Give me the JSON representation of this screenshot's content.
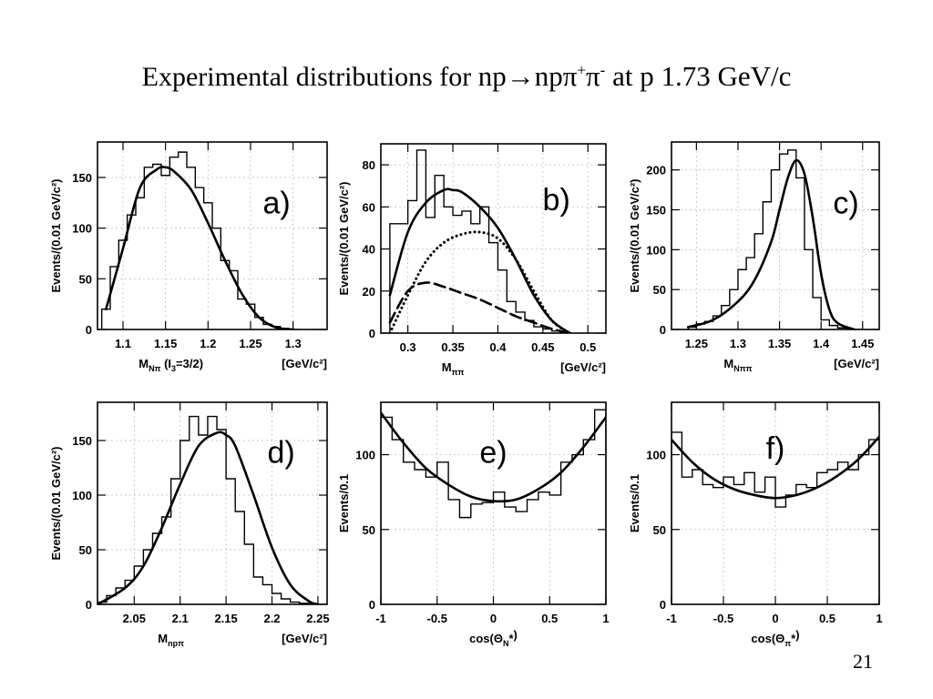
{
  "slide": {
    "title_prefix": "Experimental distributions for",
    "reaction": "np→npπ",
    "reaction_plus": "+",
    "pi_minus": "π",
    "minus_sup": "-",
    "title_suffix": "at p 1.73 GeV/c",
    "page_number": "21"
  },
  "chart_data": [
    {
      "id": "a",
      "type": "line",
      "label": "a)",
      "ylabel": "Events/(0.01 GeV/c²)",
      "xlabel_parts": [
        "M",
        "Nπ",
        " (I",
        "3",
        "=3/2)"
      ],
      "xunit": "[GeV/c²]",
      "xlim": [
        1.07,
        1.34
      ],
      "ylim": [
        0,
        185
      ],
      "xticks": [
        1.1,
        1.15,
        1.2,
        1.25,
        1.3
      ],
      "xtick_labels": [
        "1.1",
        "1.15",
        "1.2",
        "1.25",
        "1.3"
      ],
      "yticks": [
        0,
        50,
        100,
        150
      ],
      "ytick_labels": [
        "0",
        "50",
        "100",
        "150"
      ],
      "hist": {
        "start": 1.075,
        "width": 0.01,
        "counts": [
          20,
          62,
          88,
          113,
          130,
          160,
          163,
          152,
          170,
          175,
          160,
          140,
          125,
          100,
          68,
          58,
          30,
          25,
          12,
          5,
          3,
          1,
          0
        ]
      },
      "curves": [
        {
          "style": "solid",
          "x": [
            1.08,
            1.1,
            1.12,
            1.14,
            1.15,
            1.16,
            1.18,
            1.2,
            1.22,
            1.24,
            1.26,
            1.28,
            1.3
          ],
          "y": [
            20,
            80,
            140,
            158,
            160,
            156,
            138,
            105,
            68,
            35,
            12,
            2,
            0
          ]
        }
      ]
    },
    {
      "id": "b",
      "type": "line",
      "label": "b)",
      "ylabel": "Events/(0.01 GeV/c²)",
      "xlabel_parts": [
        "M",
        "ππ",
        "",
        "",
        ""
      ],
      "xunit": "[GeV/c²]",
      "xlim": [
        0.27,
        0.52
      ],
      "ylim": [
        0,
        90
      ],
      "xticks": [
        0.3,
        0.35,
        0.4,
        0.45,
        0.5
      ],
      "xtick_labels": [
        "0.3",
        "0.35",
        "0.4",
        "0.45",
        "0.5"
      ],
      "yticks": [
        0,
        20,
        40,
        60,
        80
      ],
      "ytick_labels": [
        "0",
        "20",
        "40",
        "60",
        "80"
      ],
      "hist": {
        "start": 0.28,
        "width": 0.01,
        "counts": [
          52,
          52,
          63,
          87,
          55,
          75,
          60,
          56,
          58,
          52,
          60,
          43,
          30,
          15,
          10,
          6,
          3,
          2,
          1,
          0
        ]
      },
      "curves": [
        {
          "style": "solid",
          "x": [
            0.28,
            0.3,
            0.32,
            0.34,
            0.35,
            0.36,
            0.38,
            0.4,
            0.42,
            0.44,
            0.46,
            0.48
          ],
          "y": [
            18,
            48,
            62,
            68,
            68,
            67,
            60,
            50,
            35,
            18,
            6,
            0
          ]
        },
        {
          "style": "dotted",
          "x": [
            0.28,
            0.3,
            0.32,
            0.34,
            0.36,
            0.38,
            0.4,
            0.42,
            0.44,
            0.46,
            0.48
          ],
          "y": [
            0,
            18,
            34,
            43,
            47,
            48,
            45,
            35,
            20,
            6,
            0
          ]
        },
        {
          "style": "dashed",
          "x": [
            0.28,
            0.3,
            0.32,
            0.34,
            0.36,
            0.38,
            0.4,
            0.42,
            0.44,
            0.46,
            0.48
          ],
          "y": [
            5,
            20,
            24,
            22,
            19,
            16,
            12,
            8,
            5,
            2,
            0
          ]
        }
      ]
    },
    {
      "id": "c",
      "type": "line",
      "label": "c)",
      "ylabel": "Events/(0.01 GeV/c²)",
      "xlabel_parts": [
        "M",
        "Nππ",
        "",
        "",
        ""
      ],
      "xunit": "[GeV/c²]",
      "xlim": [
        1.22,
        1.47
      ],
      "ylim": [
        0,
        235
      ],
      "xticks": [
        1.25,
        1.3,
        1.35,
        1.4,
        1.45
      ],
      "xtick_labels": [
        "1.25",
        "1.3",
        "1.35",
        "1.4",
        "1.45"
      ],
      "yticks": [
        0,
        50,
        100,
        150,
        200
      ],
      "ytick_labels": [
        "0",
        "50",
        "100",
        "150",
        "200"
      ],
      "hist": {
        "start": 1.24,
        "width": 0.01,
        "counts": [
          3,
          7,
          10,
          17,
          30,
          50,
          75,
          90,
          120,
          160,
          200,
          220,
          225,
          190,
          100,
          40,
          12,
          5,
          2,
          0,
          0
        ]
      },
      "curves": [
        {
          "style": "solid",
          "x": [
            1.24,
            1.27,
            1.3,
            1.32,
            1.34,
            1.35,
            1.36,
            1.37,
            1.38,
            1.39,
            1.4,
            1.41,
            1.42,
            1.44
          ],
          "y": [
            3,
            12,
            35,
            62,
            110,
            150,
            190,
            212,
            195,
            140,
            70,
            25,
            8,
            0
          ]
        }
      ]
    },
    {
      "id": "d",
      "type": "line",
      "label": "d)",
      "ylabel": "Events/(0.01 GeV/c²)",
      "xlabel_parts": [
        "M",
        "npπ",
        "",
        "",
        ""
      ],
      "xunit": "[GeV/c²]",
      "xlim": [
        2.01,
        2.26
      ],
      "ylim": [
        0,
        185
      ],
      "xticks": [
        2.05,
        2.1,
        2.15,
        2.2,
        2.25
      ],
      "xtick_labels": [
        "2.05",
        "2.1",
        "2.15",
        "2.2",
        "2.25"
      ],
      "yticks": [
        0,
        50,
        100,
        150
      ],
      "ytick_labels": [
        "0",
        "50",
        "100",
        "150"
      ],
      "hist": {
        "start": 2.01,
        "width": 0.01,
        "counts": [
          2,
          8,
          15,
          22,
          35,
          50,
          65,
          80,
          115,
          150,
          172,
          155,
          172,
          160,
          115,
          85,
          55,
          25,
          18,
          10,
          5,
          2,
          1,
          0
        ]
      },
      "curves": [
        {
          "style": "solid",
          "x": [
            2.01,
            2.04,
            2.06,
            2.08,
            2.1,
            2.12,
            2.14,
            2.15,
            2.16,
            2.18,
            2.2,
            2.22,
            2.24,
            2.25
          ],
          "y": [
            0,
            15,
            35,
            70,
            110,
            145,
            157,
            155,
            145,
            100,
            52,
            18,
            3,
            0
          ]
        }
      ]
    },
    {
      "id": "e",
      "type": "line",
      "label": "e)",
      "ylabel": "Events/0.1",
      "xlabel_parts": [
        "cos(Θ",
        "N",
        "*",
        ")",
        ""
      ],
      "xunit": "",
      "xlim": [
        -1,
        1
      ],
      "ylim": [
        0,
        135
      ],
      "xticks": [
        -1,
        -0.5,
        0,
        0.5,
        1
      ],
      "xtick_labels": [
        "-1",
        "-0.5",
        "0",
        "0.5",
        "1"
      ],
      "yticks": [
        0,
        50,
        100
      ],
      "ytick_labels": [
        "0",
        "50",
        "100"
      ],
      "hist": {
        "start": -1,
        "width": 0.1,
        "counts": [
          125,
          110,
          95,
          90,
          85,
          95,
          70,
          58,
          67,
          68,
          75,
          65,
          62,
          70,
          75,
          73,
          95,
          100,
          110,
          130
        ]
      },
      "curves": [
        {
          "style": "solid",
          "x": [
            -1,
            -0.8,
            -0.6,
            -0.4,
            -0.2,
            0,
            0.2,
            0.4,
            0.6,
            0.8,
            1
          ],
          "y": [
            128,
            108,
            91,
            80,
            72,
            69,
            70,
            77,
            88,
            105,
            125
          ]
        }
      ]
    },
    {
      "id": "f",
      "type": "line",
      "label": "f)",
      "ylabel": "Events/0.1",
      "xlabel_parts": [
        "cos(Θ",
        "π",
        "*",
        ")",
        ""
      ],
      "xunit": "",
      "xlim": [
        -1,
        1
      ],
      "ylim": [
        0,
        135
      ],
      "xticks": [
        -1,
        -0.5,
        0,
        0.5,
        1
      ],
      "xtick_labels": [
        "-1",
        "-0.5",
        "0",
        "0.5",
        "1"
      ],
      "yticks": [
        0,
        50,
        100
      ],
      "ytick_labels": [
        "0",
        "50",
        "100"
      ],
      "hist": {
        "start": -1,
        "width": 0.1,
        "counts": [
          115,
          85,
          90,
          80,
          78,
          85,
          80,
          88,
          75,
          85,
          65,
          73,
          80,
          78,
          88,
          90,
          95,
          90,
          100,
          110
        ]
      },
      "curves": [
        {
          "style": "solid",
          "x": [
            -1,
            -0.8,
            -0.6,
            -0.4,
            -0.2,
            0,
            0.2,
            0.4,
            0.6,
            0.8,
            1
          ],
          "y": [
            110,
            95,
            84,
            77,
            73,
            71,
            73,
            78,
            86,
            97,
            112
          ]
        }
      ]
    }
  ]
}
